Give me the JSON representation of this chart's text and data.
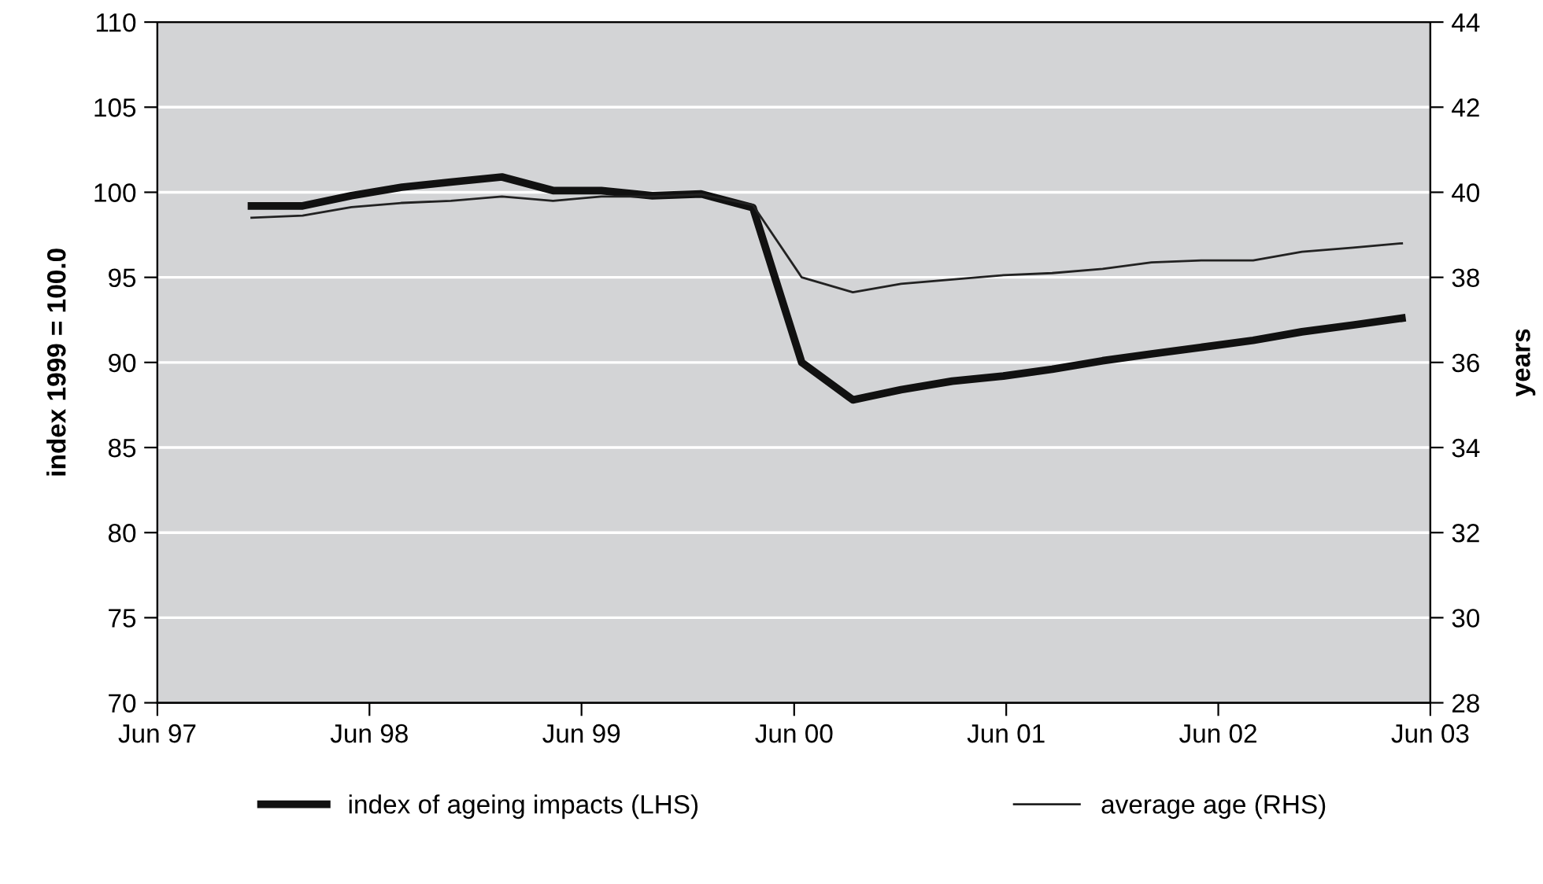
{
  "chart_data": {
    "type": "line",
    "ylabel": "index 1999 = 100.0",
    "y2label": "years",
    "x": [
      "1997-11-10",
      "1998-02-06",
      "1998-05-01",
      "1998-07-27",
      "1998-10-19",
      "1999-01-15",
      "1999-04-13",
      "1999-07-05",
      "1999-10-01",
      "1999-12-24",
      "2000-03-22",
      "2000-06-14",
      "2000-09-10",
      "2000-12-02",
      "2001-02-28",
      "2001-05-27",
      "2001-08-19",
      "2001-11-14",
      "2002-02-06",
      "2002-05-05",
      "2002-07-31",
      "2002-10-23",
      "2003-01-19",
      "2003-04-13"
    ],
    "series": [
      {
        "name": "index of ageing impacts (LHS)",
        "color": "#111111",
        "axis": "y",
        "values": [
          99.2,
          99.2,
          99.8,
          100.3,
          100.6,
          100.9,
          100.1,
          100.1,
          99.8,
          99.9,
          99.1,
          90.0,
          87.8,
          88.4,
          88.9,
          89.2,
          89.6,
          90.1,
          90.5,
          90.9,
          91.3,
          91.8,
          92.2,
          92.6
        ]
      },
      {
        "name": "average age (RHS)",
        "color": "#222222",
        "axis": "y2",
        "values": [
          39.4,
          39.45,
          39.65,
          39.75,
          39.8,
          39.9,
          39.8,
          39.9,
          39.9,
          39.95,
          39.7,
          38.0,
          37.65,
          37.85,
          37.95,
          38.05,
          38.1,
          38.2,
          38.35,
          38.4,
          38.4,
          38.6,
          38.7,
          38.8
        ]
      }
    ],
    "xlim": [
      "1997-06-01",
      "2003-06-01"
    ],
    "xticks": [
      {
        "value": "1997-06-01",
        "label": "Jun 97"
      },
      {
        "value": "1998-06-01",
        "label": "Jun 98"
      },
      {
        "value": "1999-06-01",
        "label": "Jun 99"
      },
      {
        "value": "2000-06-01",
        "label": "Jun 00"
      },
      {
        "value": "2001-06-01",
        "label": "Jun 01"
      },
      {
        "value": "2002-06-01",
        "label": "Jun 02"
      },
      {
        "value": "2003-06-01",
        "label": "Jun 03"
      }
    ],
    "ylim": [
      70,
      110
    ],
    "yticks": [
      70,
      75,
      80,
      85,
      90,
      95,
      100,
      105,
      110
    ],
    "y2lim": [
      28,
      44
    ],
    "y2ticks": [
      28,
      30,
      32,
      34,
      36,
      38,
      40,
      42,
      44
    ],
    "grid": "y",
    "legend": "bottom",
    "marker": "none",
    "line_style": "solid"
  }
}
